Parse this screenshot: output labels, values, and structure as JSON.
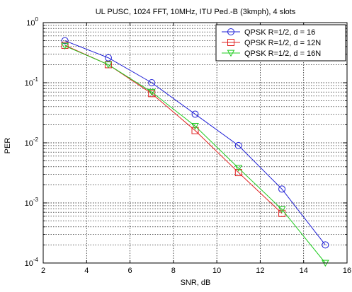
{
  "chart_data": {
    "type": "line",
    "title": "UL PUSC, 1024 FFT, 10MHz, ITU Ped.-B (3kmph), 4 slots",
    "xlabel": "SNR, dB",
    "ylabel": "PER",
    "xlim": [
      2,
      16
    ],
    "ylim": [
      0.0001,
      1
    ],
    "y_scale": "log",
    "grid": true,
    "legend_position": "top-right",
    "x_ticks": [
      2,
      4,
      6,
      8,
      10,
      12,
      14,
      16
    ],
    "x_tick_labels": [
      "2",
      "4",
      "6",
      "8",
      "10",
      "12",
      "14",
      "16"
    ],
    "y_ticks": [
      {
        "value": 1,
        "base": "10",
        "exp": "0"
      },
      {
        "value": 0.1,
        "base": "10",
        "exp": "-1"
      },
      {
        "value": 0.01,
        "base": "10",
        "exp": "-2"
      },
      {
        "value": 0.001,
        "base": "10",
        "exp": "-3"
      },
      {
        "value": 0.0001,
        "base": "10",
        "exp": "-4"
      }
    ],
    "series": [
      {
        "name": "QPSK R=1/2, d = 16",
        "color": "#1f1fd6",
        "marker": "circle",
        "x": [
          3,
          5,
          7,
          9,
          11,
          13,
          15
        ],
        "y": [
          0.5,
          0.26,
          0.1,
          0.03,
          0.009,
          0.0017,
          0.0002
        ]
      },
      {
        "name": "QPSK R=1/2, d = 12N",
        "color": "#e02020",
        "marker": "square",
        "x": [
          3,
          5,
          7,
          9,
          11,
          13
        ],
        "y": [
          0.42,
          0.2,
          0.066,
          0.016,
          0.0032,
          0.00067
        ]
      },
      {
        "name": "QPSK R=1/2, d = 16N",
        "color": "#22cc22",
        "marker": "triangle-down",
        "x": [
          3,
          5,
          7,
          9,
          11,
          13,
          15
        ],
        "y": [
          0.41,
          0.2,
          0.07,
          0.019,
          0.0038,
          0.00078,
          0.0001
        ]
      }
    ]
  }
}
